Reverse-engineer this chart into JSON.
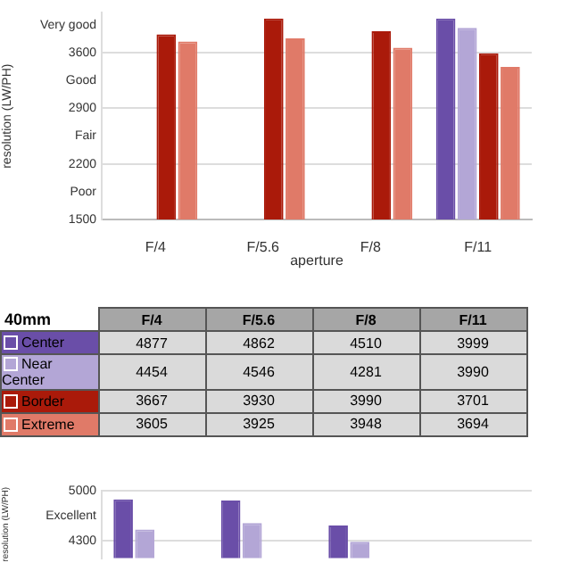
{
  "chart_data": [
    {
      "type": "bar",
      "xlabel": "aperture",
      "ylabel": "resolution (LW/PH)",
      "categories": [
        "F/4",
        "F/5.6",
        "F/8",
        "F/11"
      ],
      "series": [
        {
          "color": "#6a4ea8",
          "values": [
            null,
            null,
            null,
            4030
          ]
        },
        {
          "color": "#b3a6d6",
          "values": [
            null,
            null,
            null,
            3910
          ]
        },
        {
          "color": "#aa1a0a",
          "values": [
            3830,
            4030,
            3870,
            3590
          ]
        },
        {
          "color": "#e07a68",
          "values": [
            3740,
            3780,
            3660,
            3420
          ]
        }
      ],
      "ylim": [
        1500,
        4100
      ],
      "yticks": [
        1500,
        {
          "value": 1850,
          "label": "Poor"
        },
        2200,
        {
          "value": 2550,
          "label": "Fair"
        },
        2900,
        {
          "value": 3250,
          "label": "Good"
        },
        3600,
        {
          "value": 3950,
          "label": "Very good"
        }
      ],
      "grid": "y"
    },
    {
      "type": "bar",
      "ylabel": "resolution (LW/PH)",
      "legend_title": "40mm",
      "legend": "top left",
      "tick_labels": "y",
      "categories": [
        "F/4",
        "F/5.6",
        "F/8",
        "F/11"
      ],
      "series": [
        {
          "name": "Center",
          "color": "#6a4ea8",
          "values": [
            4877,
            4862,
            4510,
            null
          ],
          "value_labels": [
            "4877",
            "4862",
            "4510",
            "3999"
          ]
        },
        {
          "name": "Near Center",
          "color": "#b3a6d6",
          "values": [
            4454,
            4546,
            4281,
            null
          ],
          "value_labels": [
            "4454",
            "4546",
            "4281",
            "3990"
          ]
        },
        {
          "name": "Border",
          "color": "#aa1a0a",
          "values": [
            null,
            null,
            null,
            null
          ],
          "value_labels": [
            "3667",
            "3930",
            "3990",
            "3701"
          ]
        },
        {
          "name": "Extreme",
          "color": "#e07a68",
          "values": [
            null,
            null,
            null,
            null
          ],
          "value_labels": [
            "3605",
            "3925",
            "3948",
            "3694"
          ]
        }
      ],
      "ylim": [
        4050,
        5000
      ],
      "yticks": [
        4300,
        {
          "value": 4650,
          "label": "Excellent"
        },
        5000
      ],
      "grid": "y"
    }
  ]
}
